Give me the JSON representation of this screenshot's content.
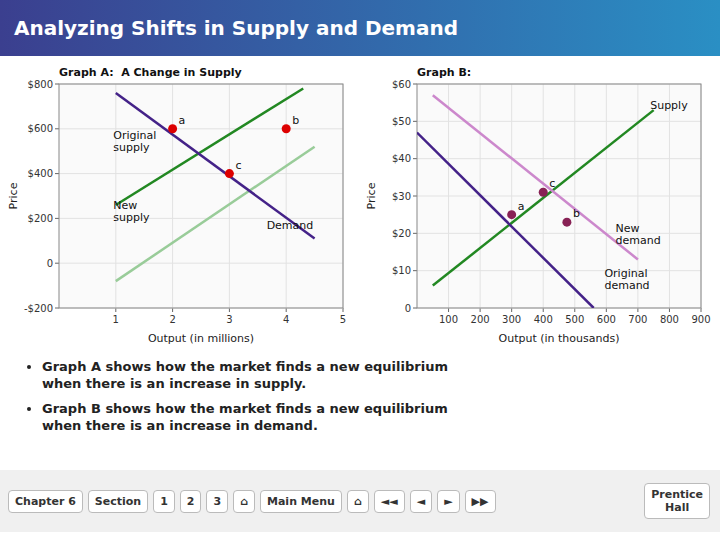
{
  "title": "Analyzing Shifts in Supply and Demand",
  "chart_data": [
    {
      "type": "line",
      "title": "Graph A:  A Change in Supply",
      "x_label": "Output (in millions)",
      "y_label": "Price",
      "xlim": [
        0,
        5
      ],
      "ylim": [
        -200,
        800
      ],
      "xticks": [
        1,
        2,
        3,
        4,
        5
      ],
      "yticks": [
        {
          "value": -200,
          "label": "-$200"
        },
        0,
        {
          "value": 200,
          "label": "$200"
        },
        {
          "value": 400,
          "label": "$400"
        },
        {
          "value": 600,
          "label": "$600"
        },
        {
          "value": 800,
          "label": "$800"
        }
      ],
      "grid": true,
      "series": [
        {
          "type": "line",
          "x": [
            1.0,
            4.3
          ],
          "values": [
            260,
            780
          ],
          "color": "#228822"
        },
        {
          "type": "line",
          "x": [
            1.0,
            4.5
          ],
          "values": [
            -80,
            520
          ],
          "color": "#99cc99"
        },
        {
          "type": "line",
          "x": [
            1.0,
            4.5
          ],
          "values": [
            760,
            110
          ],
          "color": "#442288"
        },
        {
          "type": "scatter",
          "x": [
            2.0,
            4.0,
            3.0
          ],
          "values": [
            600,
            600,
            400
          ],
          "color": "#dd0000",
          "marker": "circle"
        }
      ],
      "annotations": [
        {
          "text": "a",
          "x": 2.0,
          "y": 600
        },
        {
          "text": "b",
          "x": 4.0,
          "y": 600
        },
        {
          "text": "c",
          "x": 3.0,
          "y": 400
        },
        {
          "text": "Original\nsupply",
          "x": 0.85,
          "y": 530
        },
        {
          "text": "New\nsupply",
          "x": 0.85,
          "y": 220
        },
        {
          "text": "Demand",
          "x": 3.55,
          "y": 130
        }
      ]
    },
    {
      "type": "line",
      "title": "Graph B:",
      "x_label": "Output (in thousands)",
      "y_label": "Price",
      "xlim": [
        0,
        900
      ],
      "ylim": [
        0,
        60
      ],
      "xticks": [
        100,
        200,
        300,
        400,
        500,
        600,
        700,
        800,
        900
      ],
      "yticks": [
        0,
        {
          "value": 10,
          "label": "$10"
        },
        {
          "value": 20,
          "label": "$20"
        },
        {
          "value": 30,
          "label": "$30"
        },
        {
          "value": 40,
          "label": "$40"
        },
        {
          "value": 50,
          "label": "$50"
        },
        {
          "value": 60,
          "label": "$60"
        }
      ],
      "grid": true,
      "series": [
        {
          "type": "line",
          "x": [
            50,
            750
          ],
          "values": [
            6,
            53
          ],
          "color": "#228822"
        },
        {
          "type": "line",
          "x": [
            0,
            560
          ],
          "values": [
            47,
            0
          ],
          "color": "#442288"
        },
        {
          "type": "line",
          "x": [
            50,
            700
          ],
          "values": [
            57,
            13
          ],
          "color": "#cc88cc"
        },
        {
          "type": "scatter",
          "x": [
            300,
            475,
            400
          ],
          "values": [
            25,
            23,
            31
          ],
          "color": "#882255",
          "marker": "circle"
        }
      ],
      "annotations": [
        {
          "text": "a",
          "x": 300,
          "y": 25
        },
        {
          "text": "b",
          "x": 475,
          "y": 23
        },
        {
          "text": "c",
          "x": 400,
          "y": 31
        },
        {
          "text": "Supply",
          "x": 720,
          "y": 52
        },
        {
          "text": "New\ndemand",
          "x": 610,
          "y": 19
        },
        {
          "text": "Original\ndemand",
          "x": 575,
          "y": 7
        }
      ]
    }
  ],
  "notes": [
    "Graph A shows how the market finds a new equilibrium\nwhen there is an increase in supply.",
    "Graph B shows how the market finds a new equilibrium\nwhen there is an increase in demand."
  ],
  "footer": [
    "Chapter 6",
    "Section",
    "1",
    "2",
    "3",
    "⌂",
    "Main Menu",
    "⌂",
    "◄◄",
    "◄",
    "►",
    "▶▶",
    "Prentice\nHall"
  ]
}
